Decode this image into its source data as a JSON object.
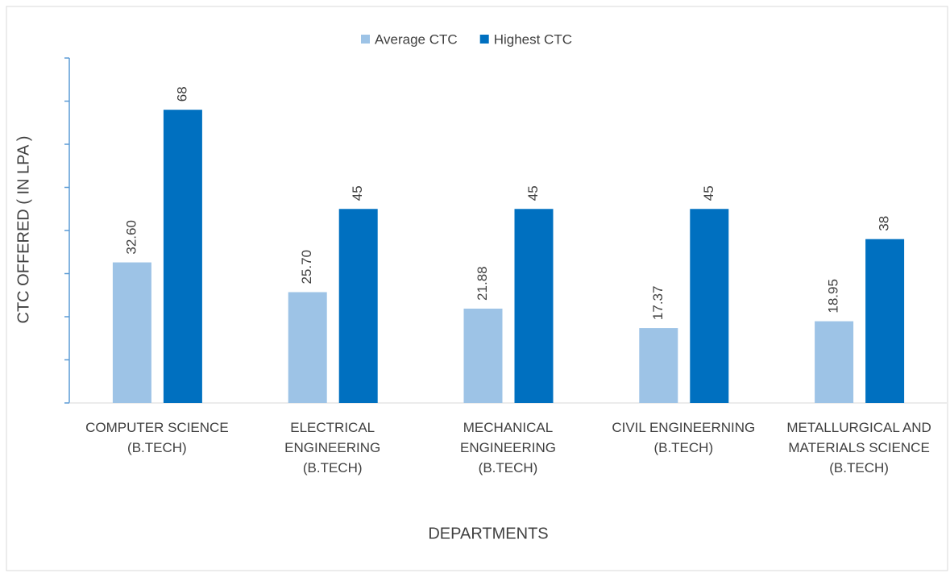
{
  "chart_data": {
    "type": "bar",
    "x_label": "DEPARTMENTS",
    "y_label": "CTC OFFERED ( IN LPA )",
    "categories": [
      "COMPUTER SCIENCE\n(B.TECH)",
      "ELECTRICAL\nENGINEERING\n(B.TECH)",
      "MECHANICAL\nENGINEERING\n(B.TECH)",
      "CIVIL ENGINEERNING\n(B.TECH)",
      "METALLURGICAL AND\nMATERIALS SCIENCE\n(B.TECH)"
    ],
    "series": [
      {
        "name": "Average CTC",
        "color": "#9dc3e6",
        "values": [
          32.6,
          25.7,
          21.88,
          17.37,
          18.95
        ],
        "value_labels": [
          "32.60",
          "25.70",
          "21.88",
          "17.37",
          "18.95"
        ]
      },
      {
        "name": "Highest CTC",
        "color": "#0070c0",
        "values": [
          68,
          45,
          45,
          45,
          38
        ]
      }
    ],
    "ylim": [
      0,
      80
    ],
    "yticks": [
      0,
      10,
      20,
      30,
      40,
      50,
      60,
      70,
      80
    ],
    "legend": "top"
  }
}
